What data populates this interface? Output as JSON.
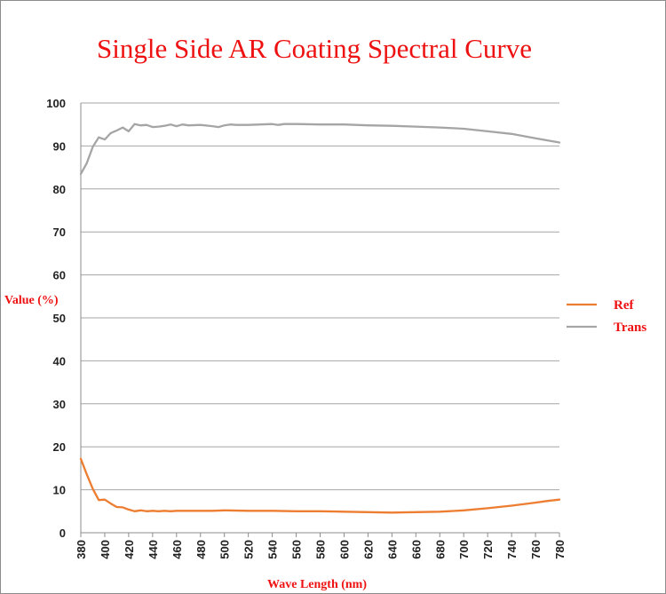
{
  "chart_data": {
    "type": "line",
    "title": "Single Side AR Coating Spectral Curve",
    "xlabel": "Wave Length (nm)",
    "ylabel": "Value (%)",
    "xlim": [
      380,
      780
    ],
    "ylim": [
      0,
      100
    ],
    "x_ticks": [
      380,
      400,
      420,
      440,
      460,
      480,
      500,
      520,
      540,
      560,
      580,
      600,
      620,
      640,
      660,
      680,
      700,
      720,
      740,
      760,
      780
    ],
    "y_ticks": [
      0,
      10,
      20,
      30,
      40,
      50,
      60,
      70,
      80,
      90,
      100
    ],
    "grid": "horizontal",
    "legend_position": "right",
    "colors": {
      "Ref": "#ed7d31",
      "Trans": "#a5a5a5"
    },
    "series": [
      {
        "name": "Ref",
        "points": [
          [
            380,
            17.2
          ],
          [
            385,
            13.6
          ],
          [
            390,
            10.2
          ],
          [
            395,
            7.6
          ],
          [
            400,
            7.7
          ],
          [
            405,
            6.8
          ],
          [
            410,
            6.0
          ],
          [
            415,
            5.9
          ],
          [
            420,
            5.4
          ],
          [
            425,
            5.0
          ],
          [
            430,
            5.2
          ],
          [
            435,
            5.0
          ],
          [
            440,
            5.1
          ],
          [
            445,
            5.0
          ],
          [
            450,
            5.1
          ],
          [
            455,
            5.0
          ],
          [
            460,
            5.1
          ],
          [
            470,
            5.1
          ],
          [
            480,
            5.1
          ],
          [
            490,
            5.1
          ],
          [
            500,
            5.2
          ],
          [
            520,
            5.1
          ],
          [
            540,
            5.1
          ],
          [
            560,
            5.0
          ],
          [
            580,
            5.0
          ],
          [
            600,
            4.9
          ],
          [
            620,
            4.8
          ],
          [
            640,
            4.7
          ],
          [
            660,
            4.8
          ],
          [
            680,
            4.9
          ],
          [
            700,
            5.2
          ],
          [
            720,
            5.7
          ],
          [
            740,
            6.3
          ],
          [
            760,
            7.0
          ],
          [
            770,
            7.4
          ],
          [
            780,
            7.7
          ]
        ]
      },
      {
        "name": "Trans",
        "points": [
          [
            380,
            83.5
          ],
          [
            385,
            86.0
          ],
          [
            390,
            89.8
          ],
          [
            395,
            92.0
          ],
          [
            400,
            91.5
          ],
          [
            405,
            93.0
          ],
          [
            410,
            93.6
          ],
          [
            415,
            94.3
          ],
          [
            420,
            93.4
          ],
          [
            425,
            95.1
          ],
          [
            430,
            94.8
          ],
          [
            435,
            94.9
          ],
          [
            440,
            94.4
          ],
          [
            445,
            94.5
          ],
          [
            450,
            94.7
          ],
          [
            455,
            95.0
          ],
          [
            460,
            94.6
          ],
          [
            465,
            95.0
          ],
          [
            470,
            94.8
          ],
          [
            480,
            94.9
          ],
          [
            490,
            94.6
          ],
          [
            495,
            94.4
          ],
          [
            500,
            94.8
          ],
          [
            505,
            95.0
          ],
          [
            510,
            94.9
          ],
          [
            520,
            94.9
          ],
          [
            530,
            95.0
          ],
          [
            540,
            95.1
          ],
          [
            545,
            94.9
          ],
          [
            550,
            95.1
          ],
          [
            560,
            95.1
          ],
          [
            580,
            95.0
          ],
          [
            600,
            95.0
          ],
          [
            620,
            94.8
          ],
          [
            640,
            94.7
          ],
          [
            660,
            94.5
          ],
          [
            680,
            94.3
          ],
          [
            700,
            94.0
          ],
          [
            720,
            93.4
          ],
          [
            740,
            92.8
          ],
          [
            760,
            91.8
          ],
          [
            770,
            91.3
          ],
          [
            780,
            90.8
          ]
        ]
      }
    ]
  }
}
